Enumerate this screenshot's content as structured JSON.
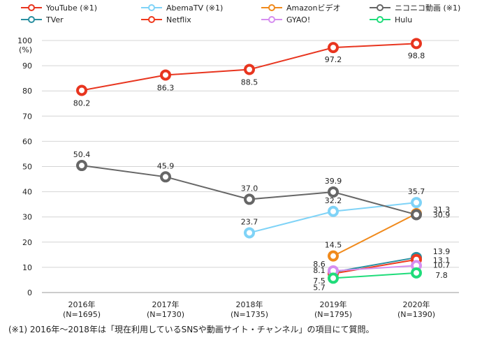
{
  "chart_data": {
    "type": "line",
    "categories": [
      "2016年\n(N=1695)",
      "2017年\n(N=1730)",
      "2018年\n(N=1735)",
      "2019年\n(N=1795)",
      "2020年\n(N=1390)"
    ],
    "y_unit_label": "(%)",
    "ylim": [
      0,
      100
    ],
    "yticks": [
      0,
      10,
      20,
      30,
      40,
      50,
      60,
      70,
      80,
      90,
      100
    ],
    "grid": true,
    "legend_position": "top",
    "series": [
      {
        "name": "YouTube (※1)",
        "color": "#e8351f",
        "values": [
          80.2,
          86.3,
          88.5,
          97.2,
          98.8
        ],
        "labels": [
          "80.2",
          "86.3",
          "88.5",
          "97.2",
          "98.8"
        ]
      },
      {
        "name": "AbemaTV (※1)",
        "color": "#7fd3f7",
        "values": [
          null,
          null,
          23.7,
          32.2,
          35.7
        ],
        "labels": [
          "",
          "",
          "23.7",
          "32.2",
          "35.7"
        ]
      },
      {
        "name": "Amazonビデオ",
        "color": "#f08a1c",
        "values": [
          null,
          null,
          null,
          14.5,
          31.3
        ],
        "labels": [
          "",
          "",
          "",
          "14.5",
          "31.3"
        ]
      },
      {
        "name": "ニコニコ動画 (※1)",
        "color": "#666666",
        "values": [
          50.4,
          45.9,
          37.0,
          39.9,
          30.9
        ],
        "labels": [
          "50.4",
          "45.9",
          "37.0",
          "39.9",
          "30.9"
        ]
      },
      {
        "name": "TVer",
        "color": "#2a8fa0",
        "values": [
          null,
          null,
          null,
          8.1,
          13.9
        ],
        "labels": [
          "",
          "",
          "",
          "8.1",
          "13.9"
        ]
      },
      {
        "name": "Netflix",
        "color": "#ef3a1e",
        "values": [
          null,
          null,
          null,
          7.5,
          13.1
        ],
        "labels": [
          "",
          "",
          "",
          "7.5",
          "13.1"
        ]
      },
      {
        "name": "GYAO!",
        "color": "#d68ef0",
        "values": [
          null,
          null,
          null,
          8.6,
          10.7
        ],
        "labels": [
          "",
          "",
          "",
          "8.6",
          "10.7"
        ]
      },
      {
        "name": "Hulu",
        "color": "#1fdc7a",
        "values": [
          null,
          null,
          null,
          5.7,
          7.8
        ],
        "labels": [
          "",
          "",
          "",
          "5.7",
          "7.8"
        ]
      }
    ]
  },
  "footnote": "(※1) 2016年〜2018年は「現在利用しているSNSや動画サイト・チャンネル」の項目にて質問。"
}
